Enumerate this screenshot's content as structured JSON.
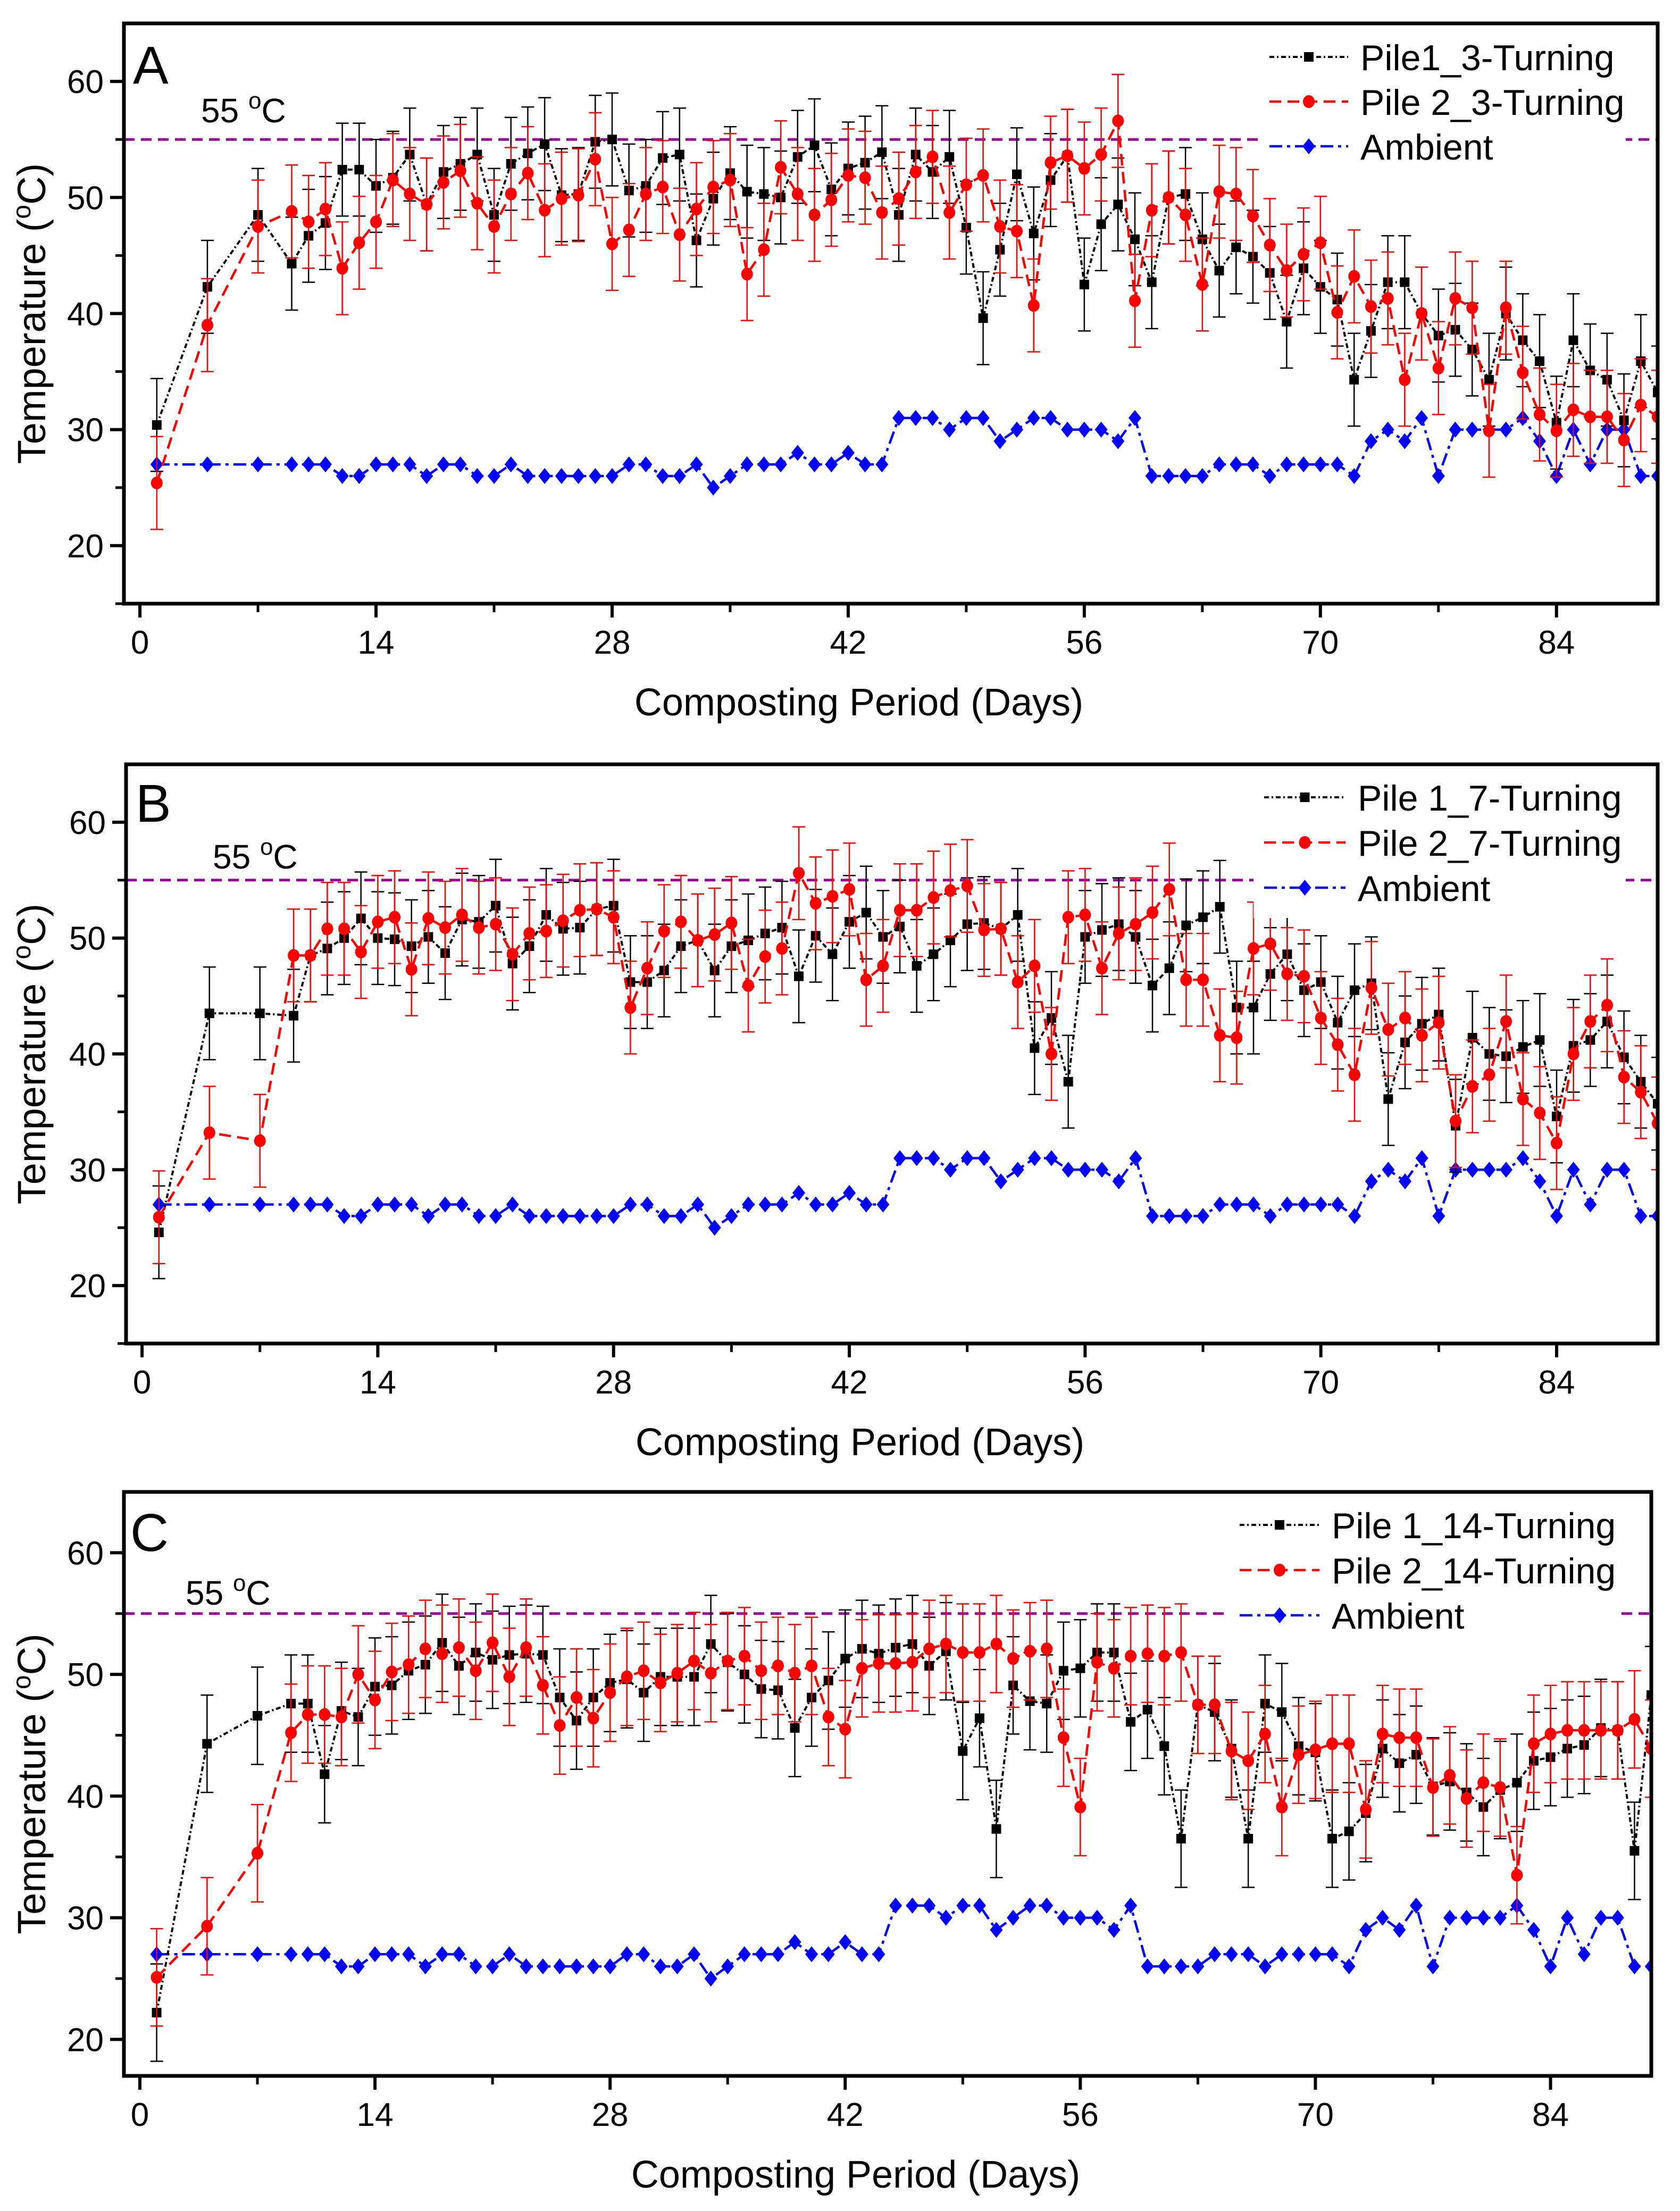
{
  "chart_data": [
    {
      "type": "line",
      "panel_label": "A",
      "title": "",
      "xlabel": "Composting Period (Days)",
      "ylabel": "Temperature (",
      "ylabel_sup": "o",
      "ylabel_end": "C)",
      "xlim": [
        -0.95,
        90
      ],
      "ylim": [
        15,
        65
      ],
      "xticks": [
        0,
        14,
        28,
        42,
        56,
        70,
        84
      ],
      "yticks": [
        20,
        30,
        40,
        50,
        60
      ],
      "grid": false,
      "legend_position": "top-right",
      "reference_line": {
        "value": 55,
        "label": "55 ",
        "label_sup": "o",
        "label_end": "C",
        "color": "#990099"
      },
      "error_bar_approx": 4,
      "x": [
        1,
        4,
        7,
        9,
        10,
        11,
        12,
        13,
        14,
        15,
        16,
        17,
        18,
        19,
        20,
        21,
        22,
        23,
        24,
        25,
        26,
        27,
        28,
        29,
        30,
        31,
        32,
        33,
        34,
        35,
        36,
        37,
        38,
        39,
        40,
        41,
        42,
        43,
        44,
        45,
        46,
        47,
        48,
        49,
        50,
        51,
        52,
        53,
        54,
        55,
        56,
        57,
        58,
        59,
        60,
        61,
        62,
        63,
        64,
        65,
        66,
        67,
        68,
        69,
        70,
        71,
        72,
        73,
        74,
        75,
        76,
        77,
        78,
        79,
        80,
        81,
        82,
        83,
        84,
        85,
        86,
        87,
        88,
        89,
        90
      ],
      "series": [
        {
          "name": "Pile1_3-Turning",
          "color": "#000000",
          "marker": "square",
          "values": [
            30.4,
            42.3,
            48.5,
            44.3,
            46.7,
            47.8,
            52.4,
            52.4,
            51,
            51.7,
            53.7,
            49.4,
            52.2,
            52.9,
            53.7,
            48.5,
            52.9,
            53.8,
            54.6,
            50.2,
            50.3,
            54.8,
            55,
            50.6,
            51,
            53.4,
            53.7,
            46.3,
            49.9,
            52.1,
            50.5,
            50.3,
            50,
            53.5,
            54.5,
            50.7,
            52.5,
            53,
            53.9,
            48.5,
            53.7,
            52.2,
            53.5,
            47.4,
            39.6,
            45.5,
            52,
            46.9,
            51.5,
            53.6,
            42.5,
            47.7,
            49.4,
            46.4,
            42.7,
            50,
            50.3,
            46.4,
            43.7,
            45.7,
            44.9,
            43.5,
            39.3,
            43.9,
            42.3,
            41.2,
            34.3,
            38.5,
            42.7,
            42.7,
            40,
            38.1,
            38.6,
            36.9,
            34.3,
            40,
            37.7,
            35.9,
            30.6,
            37.7,
            35.1,
            34.3,
            30.8,
            35.9,
            33.2
          ]
        },
        {
          "name": "Pile 2_3-Turning",
          "color": "#ff0000",
          "marker": "circle",
          "values": [
            25.4,
            39,
            47.5,
            48.8,
            47.9,
            49,
            43.9,
            46.1,
            47.9,
            51.5,
            50.3,
            49.4,
            51.3,
            52.3,
            49.5,
            47.5,
            50.3,
            52.1,
            48.9,
            49.9,
            50.2,
            53.3,
            46,
            47.2,
            50.3,
            50.9,
            46.8,
            49,
            50.9,
            51.5,
            43.4,
            45.5,
            52.6,
            50.3,
            48.5,
            49.8,
            51.9,
            51.7,
            48.7,
            49.9,
            52.2,
            53.5,
            48.7,
            51.1,
            51.9,
            47.5,
            47.1,
            40.7,
            53,
            53.6,
            52.5,
            53.7,
            56.6,
            41.1,
            48.9,
            50,
            48.5,
            42.5,
            50.5,
            50.3,
            48.4,
            45.9,
            43.7,
            45.1,
            46.1,
            40.1,
            43.2,
            40.6,
            41.3,
            34.3,
            40,
            35.3,
            41.3,
            40.5,
            29.9,
            40.5,
            34.9,
            31.3,
            29.9,
            31.7,
            31.1,
            31.1,
            29.1,
            32.1,
            31.1
          ]
        },
        {
          "name": "Ambient",
          "color": "#0000ff",
          "marker": "diamond",
          "values": [
            27,
            27,
            27,
            27,
            27,
            27,
            26,
            26,
            27,
            27,
            27,
            26,
            27,
            27,
            26,
            26,
            27,
            26,
            26,
            26,
            26,
            26,
            26,
            27,
            27,
            26,
            26,
            27,
            25,
            26,
            27,
            27,
            27,
            28,
            27,
            27,
            28,
            27,
            27,
            31,
            31,
            31,
            30,
            31,
            31,
            29,
            30,
            31,
            31,
            30,
            30,
            30,
            29,
            31,
            26,
            26,
            26,
            26,
            27,
            27,
            27,
            26,
            27,
            27,
            27,
            27,
            26,
            29,
            30,
            29,
            31,
            26,
            30,
            30,
            30,
            30,
            31,
            29,
            26,
            30,
            27,
            30,
            30,
            26,
            26
          ]
        }
      ]
    },
    {
      "type": "line",
      "panel_label": "B",
      "title": "",
      "xlabel": "Composting Period (Days)",
      "ylabel": "Temperature (",
      "ylabel_sup": "o",
      "ylabel_end": "C)",
      "xlim": [
        -0.95,
        90
      ],
      "ylim": [
        15,
        65
      ],
      "xticks": [
        0,
        14,
        28,
        42,
        56,
        70,
        84
      ],
      "yticks": [
        20,
        30,
        40,
        50,
        60
      ],
      "grid": false,
      "legend_position": "top-right",
      "reference_line": {
        "value": 55,
        "label": "55 ",
        "label_sup": "o",
        "label_end": "C",
        "color": "#990099"
      },
      "error_bar_approx": 4,
      "x": [
        1,
        4,
        7,
        9,
        10,
        11,
        12,
        13,
        14,
        15,
        16,
        17,
        18,
        19,
        20,
        21,
        22,
        23,
        24,
        25,
        26,
        27,
        28,
        29,
        30,
        31,
        32,
        33,
        34,
        35,
        36,
        37,
        38,
        39,
        40,
        41,
        42,
        43,
        44,
        45,
        46,
        47,
        48,
        49,
        50,
        51,
        52,
        53,
        54,
        55,
        56,
        57,
        58,
        59,
        60,
        61,
        62,
        63,
        64,
        65,
        66,
        67,
        68,
        69,
        70,
        71,
        72,
        73,
        74,
        75,
        76,
        77,
        78,
        79,
        80,
        81,
        82,
        83,
        84,
        85,
        86,
        87,
        88,
        89,
        90
      ],
      "series": [
        {
          "name": "Pile 1_7-Turning",
          "color": "#000000",
          "marker": "square",
          "values": [
            24.6,
            43.5,
            43.5,
            43.3,
            48.5,
            49.1,
            50,
            51.7,
            50,
            49.9,
            49.3,
            50.1,
            48.7,
            51.6,
            51.4,
            52.8,
            47.8,
            49.3,
            52,
            50.8,
            50.9,
            52.5,
            52.8,
            46.2,
            46.2,
            47.2,
            49.3,
            49.8,
            47.2,
            49.3,
            49.8,
            50.4,
            50.9,
            46.7,
            50.2,
            48.6,
            51.4,
            52.2,
            50.1,
            51,
            47.6,
            48.6,
            49.8,
            51.2,
            51.3,
            50.8,
            52,
            40.5,
            43.1,
            37.6,
            50.1,
            50.7,
            51.2,
            50.1,
            45.9,
            47.4,
            51.1,
            51.8,
            52.7,
            44,
            44,
            46.9,
            48.6,
            45.5,
            46.2,
            42.7,
            45.5,
            46.1,
            36.1,
            41,
            42.6,
            43.4,
            33.8,
            41.4,
            40,
            39.8,
            40.6,
            41.2,
            34.6,
            40.7,
            41.2,
            42.8,
            39.7,
            37.6,
            35.7
          ]
        },
        {
          "name": "Pile 2_7-Turning",
          "color": "#ff0000",
          "marker": "circle",
          "values": [
            25.9,
            33.2,
            32.5,
            48.5,
            48.5,
            50.8,
            50.8,
            48.8,
            51.4,
            51.8,
            47.3,
            51.7,
            50.9,
            52,
            50.9,
            51.2,
            48.6,
            50.4,
            50.6,
            51.5,
            52.4,
            52.5,
            51.8,
            44,
            47.4,
            50.6,
            51.4,
            49.8,
            50.3,
            51.3,
            45.9,
            48.4,
            49.1,
            55.6,
            53,
            53.6,
            54.2,
            46.4,
            47.6,
            52.4,
            52.4,
            53.5,
            54.1,
            54.5,
            50.7,
            50.8,
            46.2,
            47.6,
            40,
            51.8,
            52,
            47.4,
            50.4,
            51.2,
            52.2,
            54.2,
            46.4,
            46.4,
            41.6,
            41.4,
            49.1,
            49.5,
            46.9,
            46.7,
            43.1,
            40.8,
            38.2,
            45.7,
            42.1,
            43.1,
            41.6,
            42.7,
            34.2,
            37.2,
            38.2,
            42.8,
            36.1,
            34.9,
            32.3,
            40,
            42.8,
            44.2,
            38,
            36.7,
            34
          ]
        },
        {
          "name": "Ambient",
          "color": "#0000ff",
          "marker": "diamond",
          "values": [
            27,
            27,
            27,
            27,
            27,
            27,
            26,
            26,
            27,
            27,
            27,
            26,
            27,
            27,
            26,
            26,
            27,
            26,
            26,
            26,
            26,
            26,
            26,
            27,
            27,
            26,
            26,
            27,
            25,
            26,
            27,
            27,
            27,
            28,
            27,
            27,
            28,
            27,
            27,
            31,
            31,
            31,
            30,
            31,
            31,
            29,
            30,
            31,
            31,
            30,
            30,
            30,
            29,
            31,
            26,
            26,
            26,
            26,
            27,
            27,
            27,
            26,
            27,
            27,
            27,
            27,
            26,
            29,
            30,
            29,
            31,
            26,
            30,
            30,
            30,
            30,
            31,
            29,
            26,
            30,
            27,
            30,
            30,
            26,
            26
          ]
        }
      ]
    },
    {
      "type": "line",
      "panel_label": "C",
      "title": "",
      "xlabel": "Composting Period (Days)",
      "ylabel": "Temperature (",
      "ylabel_sup": "o",
      "ylabel_end": "C)",
      "xlim": [
        -0.95,
        90
      ],
      "ylim": [
        17,
        65
      ],
      "xticks": [
        0,
        14,
        28,
        42,
        56,
        70,
        84
      ],
      "yticks": [
        20,
        30,
        40,
        50,
        60
      ],
      "grid": false,
      "legend_position": "top-right",
      "reference_line": {
        "value": 55,
        "label": "55 ",
        "label_sup": "o",
        "label_end": "C",
        "color": "#990099"
      },
      "error_bar_approx": 4,
      "x": [
        1,
        4,
        7,
        9,
        10,
        11,
        12,
        13,
        14,
        15,
        16,
        17,
        18,
        19,
        20,
        21,
        22,
        23,
        24,
        25,
        26,
        27,
        28,
        29,
        30,
        31,
        32,
        33,
        34,
        35,
        36,
        37,
        38,
        39,
        40,
        41,
        42,
        43,
        44,
        45,
        46,
        47,
        48,
        49,
        50,
        51,
        52,
        53,
        54,
        55,
        56,
        57,
        58,
        59,
        60,
        61,
        62,
        63,
        64,
        65,
        66,
        67,
        68,
        69,
        70,
        71,
        72,
        73,
        74,
        75,
        76,
        77,
        78,
        79,
        80,
        81,
        82,
        83,
        84,
        85,
        86,
        87,
        88,
        89,
        90
      ],
      "series": [
        {
          "name": "Pile 1_14-Turning",
          "color": "#000000",
          "marker": "square",
          "values": [
            22.2,
            44.3,
            46.6,
            47.6,
            47.6,
            41.8,
            47,
            46.5,
            49,
            49.1,
            50.3,
            50.8,
            52.6,
            50.7,
            51.8,
            51.2,
            51.6,
            51.7,
            51.6,
            48.1,
            46.2,
            48.1,
            49.3,
            49.6,
            48.5,
            49.8,
            49.8,
            49.8,
            52.5,
            51,
            50,
            48.8,
            48.7,
            45.6,
            48.1,
            49.5,
            51.3,
            52.1,
            51.7,
            52.2,
            52.5,
            50.7,
            51.9,
            43.7,
            46.4,
            37.3,
            49.1,
            47.8,
            47.6,
            50.3,
            50.5,
            51.8,
            51.8,
            46.1,
            47.1,
            44.1,
            36.5,
            47.5,
            46.9,
            43.9,
            36.5,
            47.6,
            46.9,
            44.1,
            43.6,
            36.5,
            37.1,
            38.6,
            43.9,
            42.7,
            43.4,
            40.8,
            41.2,
            40.3,
            39.1,
            40.5,
            41.1,
            42.9,
            43.2,
            43.9,
            44.2,
            45.6,
            45.4,
            35.5,
            48.3
          ]
        },
        {
          "name": "Pile 2_14-Turning",
          "color": "#ff0000",
          "marker": "circle",
          "values": [
            25.1,
            29.3,
            35.3,
            45.2,
            46.7,
            46.7,
            46.5,
            50,
            47.9,
            50.2,
            50.8,
            52.1,
            51.7,
            52.2,
            50.3,
            52.6,
            49.8,
            52.2,
            49.1,
            45.8,
            48.1,
            46.4,
            48.5,
            49.8,
            50.3,
            49.3,
            50.1,
            51.1,
            50.1,
            51.1,
            51.5,
            50.3,
            50.7,
            50.1,
            50.7,
            46.5,
            45.5,
            50.5,
            50.9,
            50.9,
            51,
            52.1,
            52.5,
            51.8,
            51.8,
            52.5,
            51.3,
            51.9,
            52.1,
            44.8,
            39.1,
            51,
            50.5,
            51.5,
            51.7,
            51.5,
            51.8,
            47.5,
            47.5,
            43.7,
            42.9,
            45.1,
            39.1,
            43.4,
            43.8,
            44.3,
            44.3,
            38.9,
            45.1,
            44.8,
            44.8,
            40.7,
            41.7,
            39.8,
            41.1,
            40.7,
            33.5,
            44.3,
            45.1,
            45.4,
            45.4,
            45.4,
            45.4,
            46.3,
            43.9
          ]
        },
        {
          "name": "Ambient",
          "color": "#0000ff",
          "marker": "diamond",
          "values": [
            27,
            27,
            27,
            27,
            27,
            27,
            26,
            26,
            27,
            27,
            27,
            26,
            27,
            27,
            26,
            26,
            27,
            26,
            26,
            26,
            26,
            26,
            26,
            27,
            27,
            26,
            26,
            27,
            25,
            26,
            27,
            27,
            27,
            28,
            27,
            27,
            28,
            27,
            27,
            31,
            31,
            31,
            30,
            31,
            31,
            29,
            30,
            31,
            31,
            30,
            30,
            30,
            29,
            31,
            26,
            26,
            26,
            26,
            27,
            27,
            27,
            26,
            27,
            27,
            27,
            27,
            26,
            29,
            30,
            29,
            31,
            26,
            30,
            30,
            30,
            30,
            31,
            29,
            26,
            30,
            27,
            30,
            30,
            26,
            26
          ]
        }
      ]
    }
  ]
}
